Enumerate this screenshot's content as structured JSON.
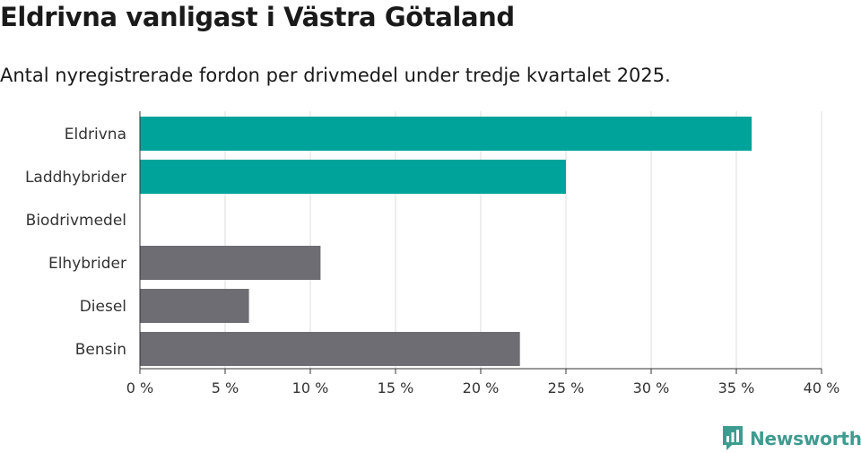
{
  "header": {
    "title": "Eldrivna vanligast i Västra Götaland",
    "subtitle": "Antal nyregistrerade fordon per drivmedel under tredje kvartalet 2025."
  },
  "brand": {
    "name": "Newsworthy",
    "color": "#3e9b8f"
  },
  "colors": {
    "highlight": "#00a399",
    "default": "#6d6d73",
    "grid": "#dcdcdc",
    "axis": "#333333"
  },
  "chart_data": {
    "type": "bar",
    "orientation": "horizontal",
    "title": "Eldrivna vanligast i Västra Götaland",
    "subtitle": "Antal nyregistrerade fordon per drivmedel under tredje kvartalet 2025.",
    "xlabel": "",
    "ylabel": "",
    "categories": [
      "Eldrivna",
      "Laddhybrider",
      "Biodrivmedel",
      "Elhybrider",
      "Diesel",
      "Bensin"
    ],
    "values": [
      35.9,
      25.0,
      0.0,
      10.6,
      6.4,
      22.3
    ],
    "highlighted": [
      true,
      true,
      true,
      false,
      false,
      false
    ],
    "xlim": [
      0,
      40
    ],
    "ticks": [
      0,
      5,
      10,
      15,
      20,
      25,
      30,
      35,
      40
    ],
    "tick_labels": [
      "0 %",
      "5 %",
      "10 %",
      "15 %",
      "20 %",
      "25 %",
      "30 %",
      "35 %",
      "40 %"
    ],
    "grid": true,
    "legend": "none"
  }
}
